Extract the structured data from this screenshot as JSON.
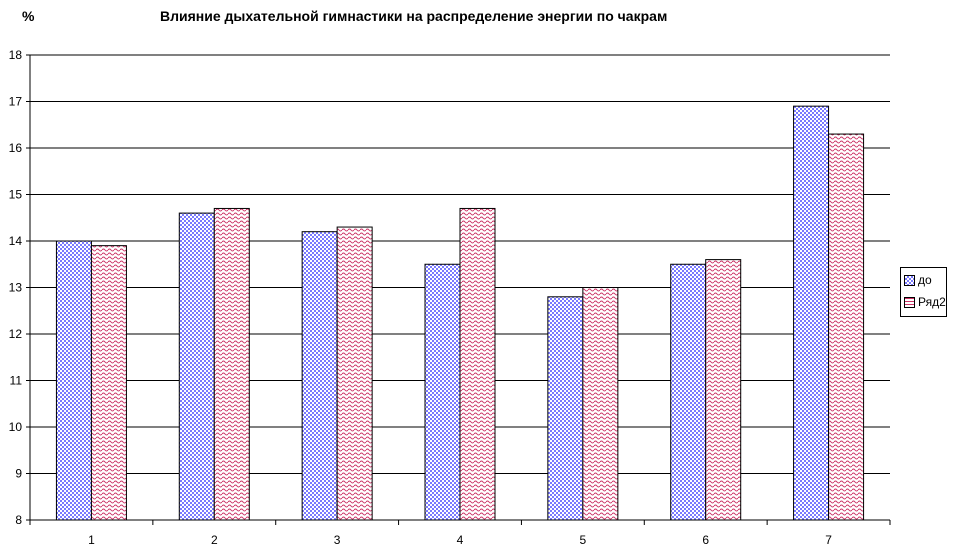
{
  "chart_data": {
    "type": "bar",
    "title": "Влияние дыхательной гимнастики на распределение энергии по чакрам",
    "ylabel": "%",
    "xlabel": "",
    "ylim": [
      8,
      18
    ],
    "yticks": [
      8,
      9,
      10,
      11,
      12,
      13,
      14,
      15,
      16,
      17,
      18
    ],
    "categories": [
      "1",
      "2",
      "3",
      "4",
      "5",
      "6",
      "7"
    ],
    "series": [
      {
        "name": "до",
        "values": [
          14.0,
          14.6,
          14.2,
          13.5,
          12.8,
          13.5,
          16.9
        ],
        "color": "#9999ff",
        "pattern": "checker"
      },
      {
        "name": "Ряд2",
        "values": [
          13.9,
          14.7,
          14.3,
          14.7,
          13.0,
          13.6,
          16.3
        ],
        "color": "#cc3366",
        "pattern": "wave"
      }
    ],
    "grid": true,
    "legend_position": "right"
  }
}
